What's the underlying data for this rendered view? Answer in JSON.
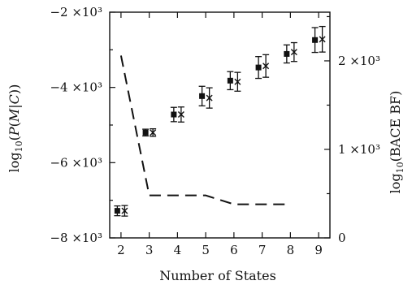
{
  "chart_data": {
    "type": "scatter",
    "x_axis": {
      "label": "Number of States",
      "range": [
        1.6,
        9.4
      ],
      "ticks": [
        2,
        3,
        4,
        5,
        6,
        7,
        8,
        9
      ],
      "tick_labels": [
        "2",
        "3",
        "4",
        "5",
        "6",
        "7",
        "8",
        "9"
      ]
    },
    "y_left": {
      "label": "log10(P(M|C))",
      "range": [
        -8000,
        -2000
      ],
      "ticks": [
        -8000,
        -6000,
        -4000,
        -2000
      ],
      "tick_labels": [
        "−8 ×10³",
        "−6 ×10³",
        "−4 ×10³",
        "−2 ×10³"
      ]
    },
    "y_right": {
      "label": "log10(BACE BF)",
      "range": [
        0,
        2550
      ],
      "ticks": [
        0,
        1000,
        2000
      ],
      "tick_labels": [
        "0",
        "1 ×10³",
        "2 ×10³"
      ]
    },
    "series": [
      {
        "marker": "square",
        "axis": "left",
        "points": [
          {
            "x": 2,
            "y": -7280,
            "err": 130
          },
          {
            "x": 3,
            "y": -5200,
            "err": 90
          },
          {
            "x": 4,
            "y": -4720,
            "err": 190
          },
          {
            "x": 5,
            "y": -4230,
            "err": 260
          },
          {
            "x": 6,
            "y": -3820,
            "err": 240
          },
          {
            "x": 7,
            "y": -3470,
            "err": 290
          },
          {
            "x": 8,
            "y": -3110,
            "err": 240
          },
          {
            "x": 9,
            "y": -2740,
            "err": 330
          }
        ]
      },
      {
        "marker": "x",
        "axis": "left",
        "points": [
          {
            "x": 2,
            "y": -7280,
            "err": 140
          },
          {
            "x": 3,
            "y": -5200,
            "err": 100
          },
          {
            "x": 4,
            "y": -4720,
            "err": 200
          },
          {
            "x": 5,
            "y": -4280,
            "err": 270
          },
          {
            "x": 6,
            "y": -3850,
            "err": 250
          },
          {
            "x": 7,
            "y": -3430,
            "err": 300
          },
          {
            "x": 8,
            "y": -3060,
            "err": 250
          },
          {
            "x": 9,
            "y": -2720,
            "err": 340
          }
        ]
      },
      {
        "style": "dashed-line",
        "axis": "right",
        "points": [
          {
            "x": 2,
            "y": 2060
          },
          {
            "x": 3,
            "y": 480
          },
          {
            "x": 4,
            "y": 480
          },
          {
            "x": 5,
            "y": 480
          },
          {
            "x": 6,
            "y": 380
          },
          {
            "x": 7,
            "y": 380
          },
          {
            "x": 8,
            "y": 380
          }
        ]
      }
    ],
    "grid": false,
    "legend": "none"
  }
}
